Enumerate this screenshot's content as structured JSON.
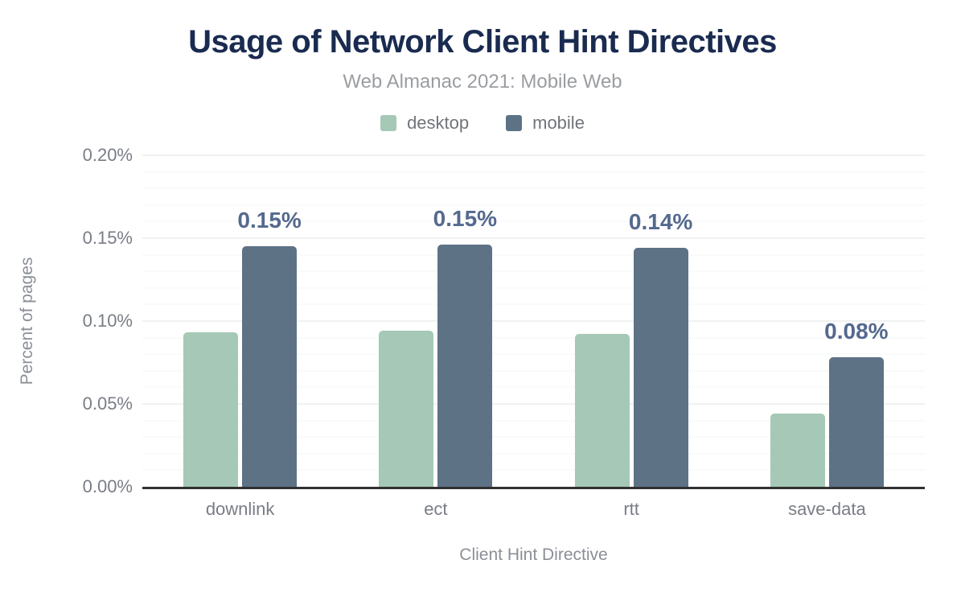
{
  "chart_data": {
    "type": "bar",
    "title": "Usage of Network Client Hint Directives",
    "title_color": "#1a2b50",
    "subtitle": "Web Almanac 2021: Mobile Web",
    "xlabel": "Client Hint Directive",
    "ylabel": "Percent of pages",
    "categories": [
      "downlink",
      "ect",
      "rtt",
      "save-data"
    ],
    "series": [
      {
        "name": "desktop",
        "color": "#a5c9b6",
        "values": [
          0.093,
          0.094,
          0.092,
          0.044
        ]
      },
      {
        "name": "mobile",
        "color": "#5e7286",
        "values": [
          0.145,
          0.146,
          0.144,
          0.078
        ],
        "labels": [
          "0.15%",
          "0.15%",
          "0.14%",
          "0.08%"
        ]
      }
    ],
    "value_label_color": "#55698e",
    "ylim": [
      0,
      0.2
    ],
    "yticks": [
      {
        "value": 0.0,
        "label": "0.00%"
      },
      {
        "value": 0.05,
        "label": "0.05%"
      },
      {
        "value": 0.1,
        "label": "0.10%"
      },
      {
        "value": 0.15,
        "label": "0.15%"
      },
      {
        "value": 0.2,
        "label": "0.20%"
      }
    ],
    "grid": {
      "minor_step": 0.01,
      "major_step": 0.05
    },
    "legend_position": "top"
  }
}
